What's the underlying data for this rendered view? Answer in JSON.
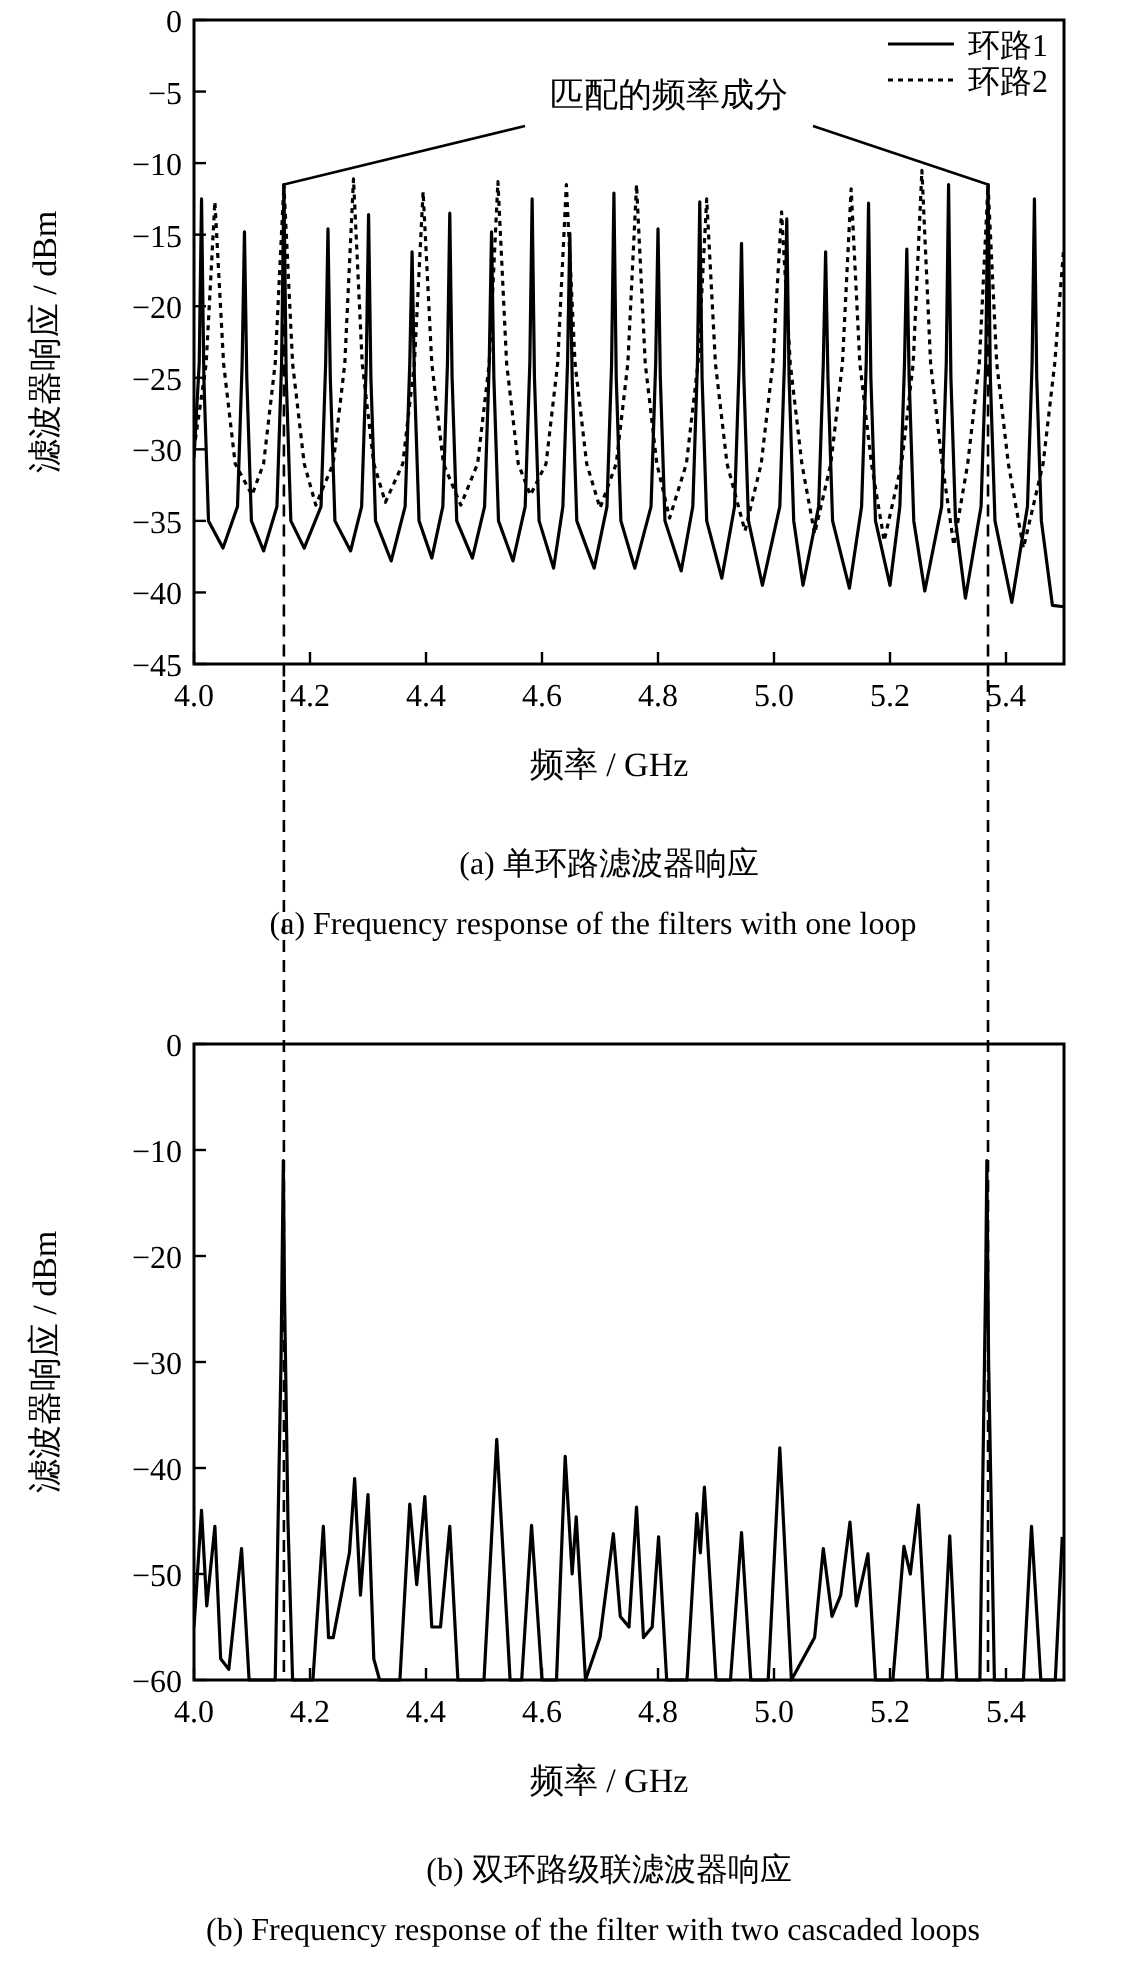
{
  "chart_data": [
    {
      "type": "line",
      "ylabel": "滤波器响应 / dBm",
      "xlabel": "频率 / GHz",
      "xlim": [
        4.0,
        5.5
      ],
      "ylim": [
        -45,
        0
      ],
      "xticks": [
        {
          "value": 4.0,
          "label": "4.0"
        },
        {
          "value": 4.2,
          "label": "4.2"
        },
        {
          "value": 4.4,
          "label": "4.4"
        },
        {
          "value": 4.6,
          "label": "4.6"
        },
        {
          "value": 4.8,
          "label": "4.8"
        },
        {
          "value": 5.0,
          "label": "5.0"
        },
        {
          "value": 5.2,
          "label": "5.2"
        },
        {
          "value": 5.4,
          "label": "5.4"
        }
      ],
      "yticks": [
        0,
        -5,
        -10,
        -15,
        -20,
        -25,
        -30,
        -35,
        -40,
        -45
      ],
      "grid": false,
      "legend": "top right",
      "marker": "none",
      "ref_lines": [
        {
          "axis": "x",
          "value": 4.155,
          "line_style": "dashed",
          "color": "#000000"
        },
        {
          "axis": "x",
          "value": 5.369,
          "line_style": "dashed",
          "color": "#000000"
        }
      ],
      "annotations": [
        {
          "text": "匹配的频率成分",
          "x": 4.155,
          "y": -11.5
        },
        "(a) 单环路滤波器响应",
        "(a) Frequency response of the filters with one loop"
      ],
      "series": [
        {
          "name": "环路1",
          "color": "#000000",
          "line_style": "solid",
          "x": [
            4.0,
            4.009,
            4.013,
            4.017,
            4.025,
            4.05,
            4.075,
            4.083,
            4.087,
            4.091,
            4.099,
            4.12,
            4.143,
            4.151,
            4.155,
            4.159,
            4.167,
            4.19,
            4.219,
            4.227,
            4.231,
            4.235,
            4.243,
            4.27,
            4.289,
            4.297,
            4.301,
            4.305,
            4.313,
            4.34,
            4.364,
            4.372,
            4.376,
            4.38,
            4.388,
            4.41,
            4.429,
            4.437,
            4.441,
            4.445,
            4.453,
            4.48,
            4.501,
            4.509,
            4.513,
            4.517,
            4.525,
            4.55,
            4.571,
            4.579,
            4.583,
            4.587,
            4.595,
            4.62,
            4.636,
            4.644,
            4.648,
            4.652,
            4.66,
            4.69,
            4.712,
            4.72,
            4.724,
            4.728,
            4.736,
            4.76,
            4.788,
            4.796,
            4.8,
            4.804,
            4.812,
            4.84,
            4.86,
            4.868,
            4.872,
            4.876,
            4.884,
            4.91,
            4.932,
            4.94,
            4.944,
            4.948,
            4.956,
            4.98,
            5.01,
            5.018,
            5.022,
            5.026,
            5.034,
            5.05,
            5.077,
            5.085,
            5.089,
            5.093,
            5.101,
            5.13,
            5.151,
            5.159,
            5.163,
            5.167,
            5.175,
            5.2,
            5.217,
            5.225,
            5.229,
            5.233,
            5.241,
            5.26,
            5.289,
            5.297,
            5.301,
            5.305,
            5.313,
            5.33,
            5.357,
            5.365,
            5.369,
            5.373,
            5.381,
            5.41,
            5.437,
            5.445,
            5.449,
            5.453,
            5.461,
            5.48,
            5.5
          ],
          "values": [
            -30.6,
            -24,
            -12.5,
            -25,
            -35,
            -36.9,
            -34,
            -24,
            -14.8,
            -25,
            -35,
            -37.1,
            -34,
            -24,
            -11.5,
            -25,
            -35,
            -36.9,
            -34,
            -24,
            -14.6,
            -25,
            -35,
            -37.1,
            -34,
            -24,
            -13.6,
            -25,
            -35,
            -37.8,
            -34,
            -24,
            -16.2,
            -25,
            -35,
            -37.6,
            -34,
            -24,
            -13.5,
            -25,
            -35,
            -37.6,
            -34,
            -24,
            -14.8,
            -25,
            -35,
            -37.8,
            -34,
            -24,
            -12.5,
            -25,
            -35,
            -38.3,
            -34,
            -24,
            -14.9,
            -25,
            -35,
            -38.3,
            -34,
            -24,
            -12.1,
            -25,
            -35,
            -38.3,
            -34,
            -24,
            -14.6,
            -25,
            -35,
            -38.5,
            -34,
            -24,
            -12.7,
            -25,
            -35,
            -39,
            -34,
            -24,
            -15.6,
            -25,
            -35,
            -39.5,
            -34,
            -24,
            -13.9,
            -25,
            -35,
            -39.5,
            -34,
            -24,
            -16.2,
            -25,
            -35,
            -39.7,
            -34,
            -24,
            -12.8,
            -25,
            -35,
            -39.5,
            -34,
            -24,
            -16,
            -25,
            -35,
            -39.9,
            -34,
            -24,
            -11.5,
            -25,
            -35,
            -40.4,
            -34,
            -24,
            -11.5,
            -25,
            -35,
            -40.7,
            -34,
            -24,
            -12.5,
            -25,
            -35,
            -40.9,
            -41
          ]
        },
        {
          "name": "环路2",
          "color": "#000000",
          "line_style": "dotted",
          "x": [
            4.0,
            4.021,
            4.036,
            4.051,
            4.071,
            4.1,
            4.12,
            4.14,
            4.155,
            4.17,
            4.19,
            4.21,
            4.24,
            4.26,
            4.275,
            4.29,
            4.31,
            4.33,
            4.36,
            4.38,
            4.395,
            4.41,
            4.43,
            4.46,
            4.489,
            4.509,
            4.524,
            4.539,
            4.559,
            4.58,
            4.607,
            4.627,
            4.642,
            4.657,
            4.677,
            4.7,
            4.728,
            4.748,
            4.763,
            4.778,
            4.798,
            4.82,
            4.849,
            4.869,
            4.884,
            4.899,
            4.919,
            4.95,
            4.978,
            4.998,
            5.013,
            5.028,
            5.048,
            5.07,
            5.098,
            5.118,
            5.133,
            5.148,
            5.168,
            5.19,
            5.22,
            5.24,
            5.255,
            5.27,
            5.29,
            5.31,
            5.334,
            5.354,
            5.369,
            5.384,
            5.404,
            5.43,
            5.464,
            5.484,
            5.499
          ],
          "values": [
            -30,
            -24,
            -12.7,
            -24,
            -31,
            -33.2,
            -31,
            -24,
            -11.5,
            -24,
            -31,
            -33.9,
            -31,
            -24,
            -11.1,
            -24,
            -31,
            -33.7,
            -31,
            -24,
            -12,
            -24,
            -31,
            -33.9,
            -31,
            -24,
            -11.3,
            -24,
            -31,
            -33.2,
            -31,
            -24,
            -11.5,
            -24,
            -31,
            -34.1,
            -31,
            -24,
            -11.5,
            -24,
            -31,
            -34.8,
            -31,
            -24,
            -12.5,
            -24,
            -31,
            -35.7,
            -31,
            -24,
            -13.4,
            -24,
            -31,
            -35.9,
            -31,
            -24,
            -11.8,
            -24,
            -31,
            -36.4,
            -31,
            -24,
            -10.5,
            -24,
            -31,
            -36.7,
            -31,
            -24,
            -11.5,
            -24,
            -31,
            -36.9,
            -31,
            -24,
            -16.2
          ]
        }
      ]
    },
    {
      "type": "line",
      "ylabel": "滤波器响应 / dBm",
      "xlabel": "频率 / GHz",
      "xlim": [
        4.0,
        5.5
      ],
      "ylim": [
        -60,
        0
      ],
      "xticks": [
        {
          "value": 4.0,
          "label": "4.0"
        },
        {
          "value": 4.2,
          "label": "4.2"
        },
        {
          "value": 4.4,
          "label": "4.4"
        },
        {
          "value": 4.6,
          "label": "4.6"
        },
        {
          "value": 4.8,
          "label": "4.8"
        },
        {
          "value": 5.0,
          "label": "5.0"
        },
        {
          "value": 5.2,
          "label": "5.2"
        },
        {
          "value": 5.4,
          "label": "5.4"
        }
      ],
      "yticks": [
        0,
        -10,
        -20,
        -30,
        -40,
        -50,
        -60
      ],
      "grid": false,
      "marker": "none",
      "ref_lines": [
        {
          "axis": "x",
          "value": 4.155,
          "line_style": "dashed",
          "color": "#000000"
        },
        {
          "axis": "x",
          "value": 5.369,
          "line_style": "dashed",
          "color": "#000000"
        }
      ],
      "annotations": [
        "(b) 双环路级联滤波器响应",
        "(b) Frequency response of the filter with two cascaded loops"
      ],
      "series": [
        {
          "color": "#000000",
          "line_style": "solid",
          "x": [
            4.0,
            4.013,
            4.022,
            4.036,
            4.046,
            4.06,
            4.082,
            4.095,
            4.14,
            4.15,
            4.154,
            4.156,
            4.162,
            4.17,
            4.205,
            4.223,
            4.232,
            4.24,
            4.268,
            4.277,
            4.287,
            4.3,
            4.31,
            4.32,
            4.355,
            4.372,
            4.384,
            4.398,
            4.41,
            4.425,
            4.441,
            4.455,
            4.5,
            4.522,
            4.545,
            4.565,
            4.582,
            4.6,
            4.625,
            4.64,
            4.652,
            4.659,
            4.675,
            4.7,
            4.723,
            4.735,
            4.75,
            4.763,
            4.775,
            4.79,
            4.801,
            4.815,
            4.85,
            4.867,
            4.873,
            4.88,
            4.9,
            4.925,
            4.944,
            4.96,
            4.99,
            5.01,
            5.03,
            5.07,
            5.085,
            5.1,
            5.115,
            5.131,
            5.142,
            5.162,
            5.175,
            5.205,
            5.224,
            5.235,
            5.249,
            5.265,
            5.29,
            5.303,
            5.315,
            5.355,
            5.365,
            5.367,
            5.37,
            5.38,
            5.43,
            5.444,
            5.46,
            5.485,
            5.497
          ],
          "values": [
            -55,
            -44,
            -53,
            -45.5,
            -58,
            -59,
            -47.6,
            -60,
            -60,
            -30,
            -11,
            -23.4,
            -45,
            -60,
            -60,
            -45.5,
            -56,
            -56,
            -48,
            -41,
            -52,
            -42.5,
            -58,
            -60,
            -60,
            -43.4,
            -51,
            -42.7,
            -55,
            -55,
            -45.5,
            -60,
            -60,
            -37.3,
            -60,
            -60,
            -45.4,
            -60,
            -60,
            -38.9,
            -50,
            -44.6,
            -60,
            -56,
            -46.2,
            -54,
            -55,
            -43.7,
            -56,
            -55,
            -46.5,
            -60,
            -60,
            -44.3,
            -48,
            -41.8,
            -60,
            -60,
            -46.1,
            -60,
            -60,
            -38.1,
            -60,
            -56,
            -47.6,
            -54,
            -52,
            -45.1,
            -53,
            -48.1,
            -60,
            -60,
            -47.4,
            -50,
            -43.5,
            -60,
            -60,
            -46.4,
            -60,
            -60,
            -22,
            -11,
            -30,
            -60,
            -60,
            -45.5,
            -60,
            -60,
            -46.5
          ]
        }
      ]
    }
  ]
}
